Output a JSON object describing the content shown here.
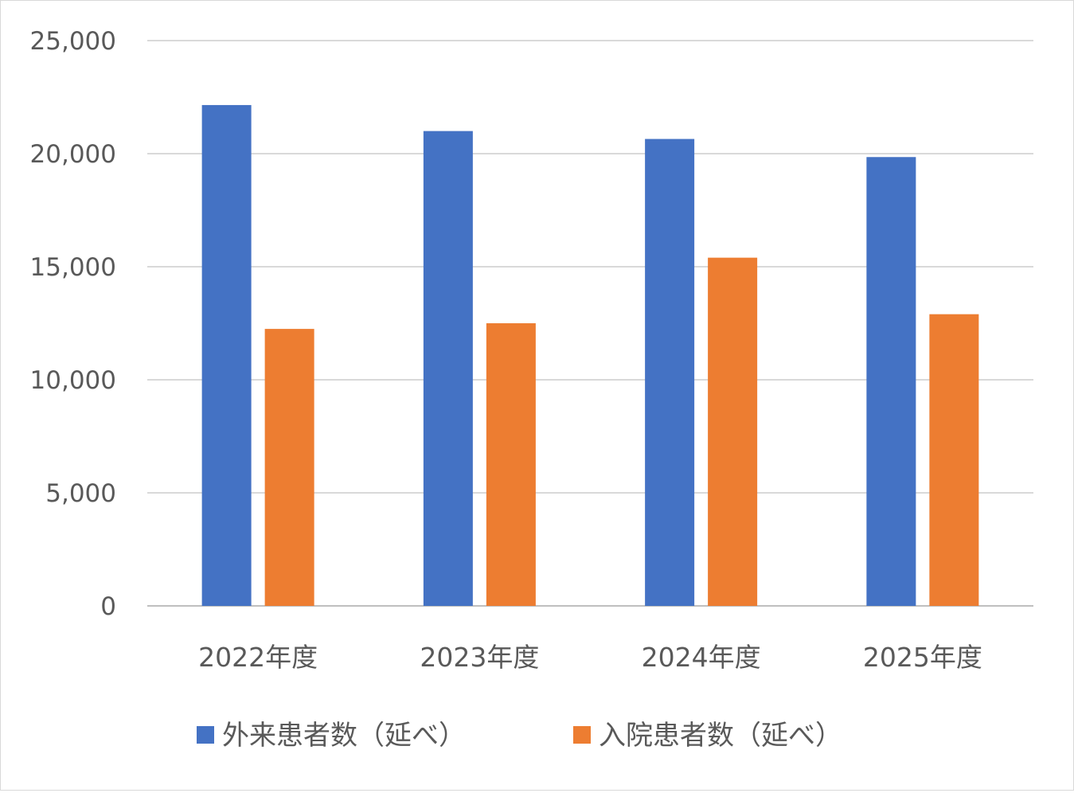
{
  "chart_data": {
    "type": "bar",
    "title": "",
    "xlabel": "",
    "ylabel": "",
    "categories": [
      "2022年度",
      "2023年度",
      "2024年度",
      "2025年度"
    ],
    "series": [
      {
        "name": "外来患者数（延べ）",
        "color": "#4472C4",
        "values": [
          22150,
          21000,
          20650,
          19850
        ]
      },
      {
        "name": "入院患者数（延べ）",
        "color": "#ED7D31",
        "values": [
          12250,
          12500,
          15400,
          12900
        ]
      }
    ],
    "ylim": [
      0,
      25000
    ],
    "yticks": [
      0,
      5000,
      10000,
      15000,
      20000,
      25000
    ],
    "ytick_labels": [
      "0",
      "5,000",
      "10,000",
      "15,000",
      "20,000",
      "25,000"
    ],
    "grid": true,
    "legend_position": "bottom"
  }
}
